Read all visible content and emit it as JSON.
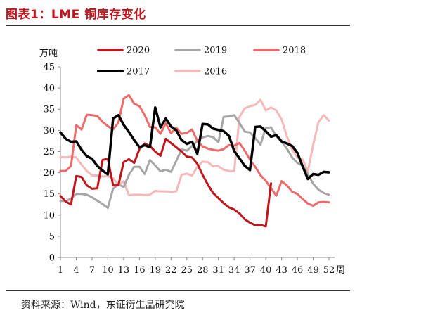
{
  "header": {
    "title": "图表1：LME 铜库存变化"
  },
  "footer": {
    "source": "资料来源：Wind，东证衍生品研究院"
  },
  "chart_data": {
    "type": "line",
    "title": "LME 铜库存变化",
    "ylabel": "万吨",
    "xlabel": "周",
    "ylim": [
      0,
      45
    ],
    "yticks": [
      0,
      5,
      10,
      15,
      20,
      25,
      30,
      35,
      40,
      45
    ],
    "xlim": [
      1,
      52
    ],
    "xticks": [
      1,
      4,
      7,
      10,
      13,
      16,
      19,
      22,
      25,
      28,
      31,
      34,
      37,
      40,
      43,
      46,
      49,
      52
    ],
    "legend_position": "top",
    "series": [
      {
        "name": "2020",
        "color": "#c0151b",
        "width": 3,
        "x": [
          1,
          2,
          3,
          4,
          5,
          6,
          7,
          8,
          9,
          10,
          11,
          12,
          13,
          14,
          15,
          16,
          17,
          18,
          19,
          20,
          21,
          22,
          23,
          24,
          25,
          26,
          27,
          28,
          29,
          30,
          31,
          32,
          33,
          34,
          35,
          36,
          37,
          38,
          39,
          40,
          41
        ],
        "values": [
          14.5,
          13.2,
          12.5,
          19.2,
          19,
          17,
          16.2,
          16.3,
          23,
          23.3,
          17,
          17,
          22.5,
          23.2,
          22.3,
          25.6,
          26.9,
          26.3,
          25,
          24,
          28,
          27,
          26,
          25,
          23.8,
          23.6,
          22.1,
          19.5,
          17.2,
          15.2,
          14,
          12.8,
          11.8,
          11.3,
          10.4,
          9,
          8.2,
          7.6,
          7.7,
          7.3,
          17.5
        ]
      },
      {
        "name": "2019",
        "color": "#a6a6a6",
        "width": 3,
        "x": [
          1,
          2,
          3,
          4,
          5,
          6,
          7,
          8,
          9,
          10,
          11,
          12,
          13,
          14,
          15,
          16,
          17,
          18,
          19,
          20,
          21,
          22,
          23,
          24,
          25,
          26,
          27,
          28,
          29,
          30,
          31,
          32,
          33,
          34,
          35,
          36,
          37,
          38,
          39,
          40,
          41,
          42,
          43,
          44,
          45,
          46,
          47,
          48,
          49,
          50,
          51,
          52
        ],
        "values": [
          13.3,
          13.3,
          13.9,
          15,
          15,
          14.8,
          14.2,
          13.4,
          12.6,
          11.7,
          16.2,
          17.3,
          16.6,
          19.5,
          21.4,
          21.4,
          19.7,
          23,
          21.7,
          20.3,
          20.7,
          20.2,
          22.8,
          25.5,
          25.2,
          26.3,
          27.5,
          28.3,
          28.7,
          28.4,
          27.2,
          33.2,
          33.3,
          33.6,
          31.7,
          29.7,
          29.5,
          28.2,
          26.6,
          30.6,
          30.7,
          28.6,
          27.3,
          25.7,
          23.6,
          22.3,
          21.7,
          19.7,
          17.4,
          16,
          15.2,
          14.8
        ]
      },
      {
        "name": "2018",
        "color": "#ee6a6a",
        "width": 3,
        "x": [
          1,
          2,
          3,
          4,
          5,
          6,
          7,
          8,
          9,
          10,
          11,
          12,
          13,
          14,
          15,
          16,
          17,
          18,
          19,
          20,
          21,
          22,
          23,
          24,
          25,
          26,
          27,
          28,
          29,
          30,
          31,
          32,
          33,
          34,
          35,
          36,
          37,
          38,
          39,
          40,
          41,
          42,
          43,
          44,
          45,
          46,
          47,
          48,
          49,
          50,
          51,
          52
        ],
        "values": [
          20.4,
          20.4,
          21.6,
          31.2,
          30.2,
          33.7,
          33.6,
          33.4,
          32,
          31,
          30.2,
          31.8,
          37.5,
          38.3,
          36.3,
          35.7,
          33.6,
          30.8,
          30.7,
          29.2,
          31.7,
          29.3,
          30.6,
          29.2,
          29.4,
          30.2,
          27.5,
          26.2,
          25.7,
          25.4,
          25.2,
          25.6,
          26.5,
          26.4,
          27,
          25.2,
          23.1,
          21.4,
          19.4,
          18.1,
          16.3,
          14.6,
          18,
          17,
          15.5,
          15,
          13.8,
          12.7,
          12.2,
          13,
          13.1,
          13
        ]
      },
      {
        "name": "2017",
        "color": "#000000",
        "width": 3.5,
        "x": [
          1,
          2,
          3,
          4,
          5,
          6,
          7,
          8,
          9,
          10,
          11,
          12,
          13,
          14,
          15,
          16,
          17,
          18,
          19,
          20,
          21,
          22,
          23,
          24,
          25,
          26,
          27,
          28,
          29,
          30,
          31,
          32,
          33,
          34,
          35,
          36,
          37,
          38,
          39,
          40,
          41,
          42,
          43,
          44,
          45,
          46,
          47,
          48,
          49,
          50,
          51,
          52
        ],
        "values": [
          29.5,
          28,
          27.3,
          27.4,
          25.4,
          23.9,
          23.3,
          21.6,
          20.5,
          19.6,
          32.8,
          33.6,
          31.3,
          29.6,
          27.7,
          26,
          26.5,
          26,
          35.4,
          30.7,
          32.8,
          30.9,
          30,
          27.7,
          26.8,
          27.3,
          24.5,
          31.5,
          31.4,
          30.4,
          30.1,
          29.8,
          28.7,
          25.1,
          23.4,
          21.6,
          20.6,
          30.8,
          30.9,
          29.8,
          28.5,
          28.9,
          27.4,
          26.9,
          26.3,
          24.7,
          21.5,
          18.5,
          19.7,
          19.5,
          20.2,
          20.1
        ]
      },
      {
        "name": "2016",
        "color": "#f6b8b8",
        "width": 3,
        "x": [
          1,
          2,
          3,
          4,
          5,
          6,
          7,
          8,
          9,
          10,
          11,
          12,
          13,
          14,
          15,
          16,
          17,
          18,
          19,
          20,
          21,
          22,
          23,
          24,
          25,
          26,
          27,
          28,
          29,
          30,
          31,
          32,
          33,
          34,
          35,
          36,
          37,
          38,
          39,
          40,
          41,
          42,
          43,
          44,
          45,
          46,
          47,
          48,
          49,
          50,
          51,
          52
        ],
        "values": [
          23.7,
          23.6,
          23.8,
          23.6,
          21.9,
          20.4,
          19.4,
          19.3,
          19.1,
          19.2,
          18.7,
          17.1,
          18,
          14.7,
          14.8,
          14.8,
          14.7,
          14.8,
          15.7,
          15.6,
          15.6,
          15.5,
          15.6,
          19.5,
          19.8,
          19.3,
          21.4,
          22.6,
          22.5,
          21.5,
          21.5,
          20.7,
          20.4,
          20.3,
          33.2,
          35.2,
          35.7,
          36,
          37.2,
          34.7,
          35.4,
          34.7,
          32.6,
          28.6,
          25.5,
          23.6,
          23.1,
          20.3,
          26.6,
          31.9,
          33.6,
          32.3
        ]
      }
    ]
  }
}
